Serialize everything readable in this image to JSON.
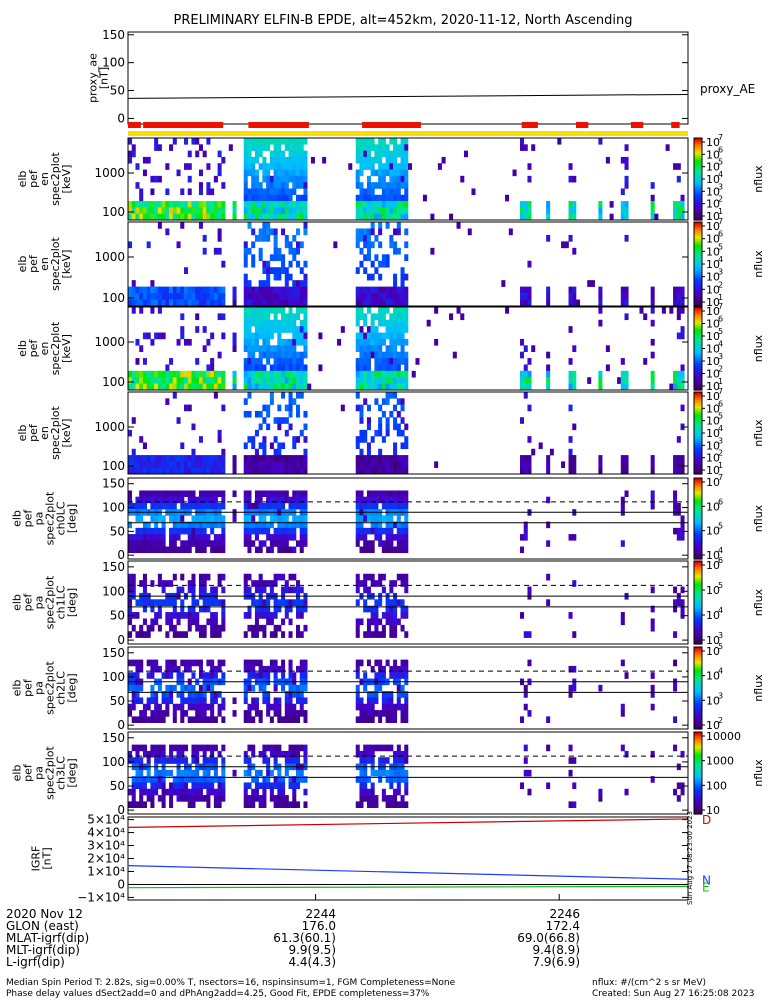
{
  "title": "PRELIMINARY ELFIN-B EPDE, alt=452km, 2020-11-12, North Ascending",
  "colors": {
    "line": "#000000",
    "bar_red": "#ee1100",
    "bar_yellow": "#ffdd00",
    "igrf_d": "#cc0000",
    "igrf_n": "#1e3cff",
    "igrf_e": "#11bb11"
  },
  "chart_data": [
    {
      "panel": "proxy_ae",
      "type": "line",
      "ylabel": [
        "proxy_ae",
        "[nT]"
      ],
      "ylim": [
        -10,
        155
      ],
      "yticks": [
        "150",
        "100",
        "50",
        "0"
      ],
      "series": [
        {
          "name": "proxy_AE",
          "x": [
            0,
            1
          ],
          "y": [
            36,
            43
          ]
        }
      ],
      "legend": "proxy_AE"
    },
    {
      "panel": "science-zone bars",
      "type": "bar",
      "red_segments": [
        [
          0,
          0.023
        ],
        [
          0.027,
          0.17
        ],
        [
          0.215,
          0.323
        ],
        [
          0.418,
          0.523
        ],
        [
          0.703,
          0.732
        ],
        [
          0.8,
          0.822
        ],
        [
          0.898,
          0.92
        ],
        [
          0.97,
          0.985
        ]
      ],
      "yellow_segments": [
        [
          0,
          1
        ]
      ]
    },
    {
      "panel": "en spec2plot 1",
      "type": "heatmap",
      "ylabel": [
        "elb",
        "pef",
        "en",
        "spec2plot",
        "[keV]"
      ],
      "yticks": [
        "1000",
        "100"
      ],
      "zlabel": "nflux",
      "zticks": [
        "10",
        "10",
        "10",
        "10",
        "10",
        "10",
        "10"
      ],
      "zexp": [
        "7",
        "6",
        "5",
        "4",
        "3",
        "2",
        "1"
      ]
    },
    {
      "panel": "en spec2plot 2",
      "type": "heatmap",
      "ylabel": [
        "elb",
        "pef",
        "en",
        "spec2plot",
        "[keV]"
      ],
      "yticks": [
        "1000",
        "100"
      ],
      "zlabel": "nflux",
      "zticks": [
        "10",
        "10",
        "10",
        "10",
        "10",
        "10",
        "10"
      ],
      "zexp": [
        "7",
        "6",
        "5",
        "4",
        "3",
        "2",
        "1"
      ]
    },
    {
      "panel": "en spec2plot 3",
      "type": "heatmap",
      "ylabel": [
        "elb",
        "pef",
        "en",
        "spec2plot",
        "[keV]"
      ],
      "yticks": [
        "1000",
        "100"
      ],
      "zlabel": "nflux",
      "zticks": [
        "10",
        "10",
        "10",
        "10",
        "10",
        "10",
        "10"
      ],
      "zexp": [
        "7",
        "6",
        "5",
        "4",
        "3",
        "2",
        "1"
      ]
    },
    {
      "panel": "en spec2plot 4",
      "type": "heatmap",
      "ylabel": [
        "elb",
        "pef",
        "en",
        "spec2plot",
        "[keV]"
      ],
      "yticks": [
        "1000",
        "100"
      ],
      "zlabel": "nflux",
      "zticks": [
        "10",
        "10",
        "10",
        "10",
        "10",
        "10",
        "10"
      ],
      "zexp": [
        "7",
        "6",
        "5",
        "4",
        "3",
        "2",
        "1"
      ]
    },
    {
      "panel": "ch0LC",
      "type": "heatmap",
      "ylabel": [
        "elb",
        "pef",
        "pa",
        "spec2plot",
        "ch0LC",
        "[deg]"
      ],
      "yticks": [
        "150",
        "100",
        "50",
        "0"
      ],
      "zlabel": "nflux",
      "zticks": [
        "10",
        "10",
        "10",
        "10"
      ],
      "zexp": [
        "7",
        "6",
        "5",
        "4"
      ]
    },
    {
      "panel": "ch1LC",
      "type": "heatmap",
      "ylabel": [
        "elb",
        "pef",
        "pa",
        "spec2plot",
        "ch1LC",
        "[deg]"
      ],
      "yticks": [
        "150",
        "100",
        "50",
        "0"
      ],
      "zlabel": "nflux",
      "zticks": [
        "10",
        "10",
        "10",
        "10"
      ],
      "zexp": [
        "6",
        "5",
        "4",
        "3"
      ]
    },
    {
      "panel": "ch2LC",
      "type": "heatmap",
      "ylabel": [
        "elb",
        "pef",
        "pa",
        "spec2plot",
        "ch2LC",
        "[deg]"
      ],
      "yticks": [
        "150",
        "100",
        "50",
        "0"
      ],
      "zlabel": "nflux",
      "zticks": [
        "10",
        "10",
        "10",
        "10"
      ],
      "zexp": [
        "5",
        "4",
        "3",
        "2"
      ]
    },
    {
      "panel": "ch3LC",
      "type": "heatmap",
      "ylabel": [
        "elb",
        "pef",
        "pa",
        "spec2plot",
        "ch3LC",
        "[deg]"
      ],
      "yticks": [
        "150",
        "100",
        "50",
        "0"
      ],
      "zlabel": "nflux",
      "zticks": [
        "10000",
        "1000",
        "100",
        "10"
      ]
    },
    {
      "panel": "IGRF",
      "type": "line",
      "ylabel": [
        "IGRF",
        "[nT]"
      ],
      "ylim": [
        -12000,
        52000
      ],
      "yticks": [
        "5×10⁴",
        "4×10⁴",
        "3×10⁴",
        "2×10⁴",
        "1×10⁴",
        "0",
        "−1×10⁴"
      ],
      "series": [
        {
          "name": "D",
          "x": [
            0,
            1
          ],
          "y": [
            44000,
            50500
          ]
        },
        {
          "name": "N",
          "x": [
            0,
            1
          ],
          "y": [
            14500,
            4000
          ]
        },
        {
          "name": "E",
          "x": [
            0,
            1
          ],
          "y": [
            -2500,
            -1500
          ]
        }
      ],
      "side_note": "Sun Aug 27 08:23:00 2023"
    }
  ],
  "footer": {
    "rows": [
      {
        "label": "2020 Nov 12",
        "v1": "2244",
        "v2": "2246"
      },
      {
        "label": "GLON (east)",
        "v1": "176.0",
        "v2": "172.4"
      },
      {
        "label": "MLAT-igrf(dip)",
        "v1": "61.3(60.1)",
        "v2": "69.0(66.8)"
      },
      {
        "label": "MLT-igrf(dip)",
        "v1": "9.9(9.5)",
        "v2": "9.4(8.9)"
      },
      {
        "label": "L-igrf(dip)",
        "v1": "4.4(4.3)",
        "v2": "7.9(6.9)"
      }
    ],
    "note1": "Median Spin Period T: 2.82s, sig=0.00% T, nsectors=16, nspinsinsum=1, FGM Completeness=None",
    "note2": "Phase delay values dSect2add=0 and dPhAng2add=4.25, Good Fit, EPDE completeness=37%",
    "units": "nflux: #/(cm^2 s sr MeV)",
    "created": "Created: Sun Aug 27 16:25:08 2023"
  }
}
